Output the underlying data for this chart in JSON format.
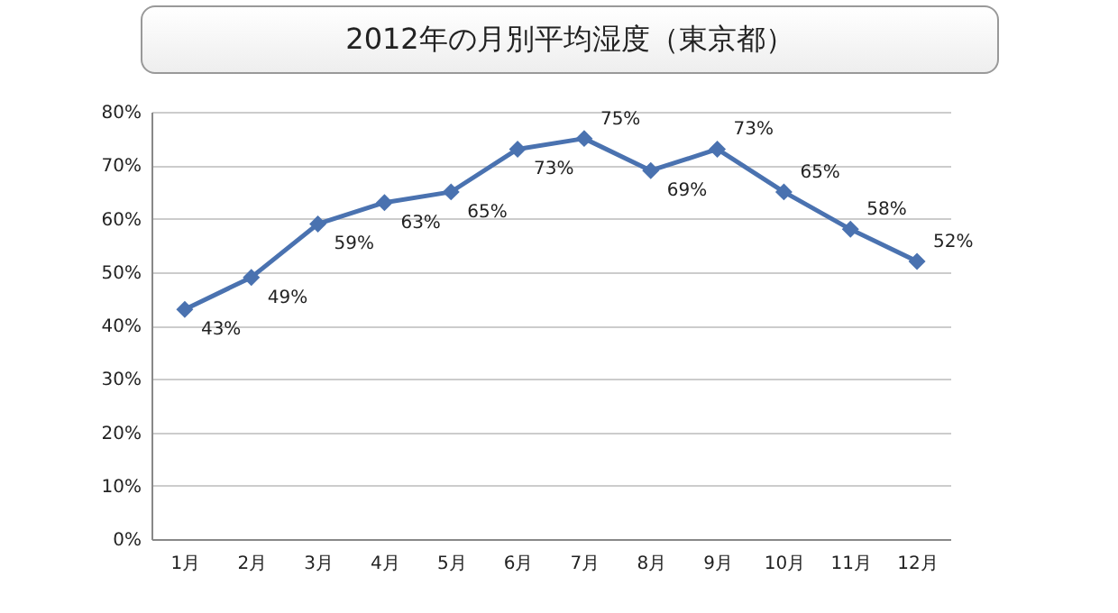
{
  "chart_data": {
    "type": "line",
    "title": "2012年の月別平均湿度（東京都）",
    "categories": [
      "1月",
      "2月",
      "3月",
      "4月",
      "5月",
      "6月",
      "7月",
      "8月",
      "9月",
      "10月",
      "11月",
      "12月"
    ],
    "values": [
      43,
      49,
      59,
      63,
      65,
      73,
      75,
      69,
      73,
      65,
      58,
      52
    ],
    "value_labels": [
      "43%",
      "49%",
      "59%",
      "63%",
      "65%",
      "73%",
      "75%",
      "69%",
      "73%",
      "65%",
      "58%",
      "52%"
    ],
    "color": "#4a72b0",
    "ylim": [
      0,
      80
    ],
    "yticks": [
      {
        "value": 0,
        "label": "0%"
      },
      {
        "value": 10,
        "label": "10%"
      },
      {
        "value": 20,
        "label": "20%"
      },
      {
        "value": 30,
        "label": "30%"
      },
      {
        "value": 40,
        "label": "40%"
      },
      {
        "value": 50,
        "label": "50%"
      },
      {
        "value": 60,
        "label": "60%"
      },
      {
        "value": 70,
        "label": "70%"
      },
      {
        "value": 80,
        "label": "80%"
      }
    ],
    "grid": "y",
    "marker": "diamond",
    "line_style": "solid"
  }
}
